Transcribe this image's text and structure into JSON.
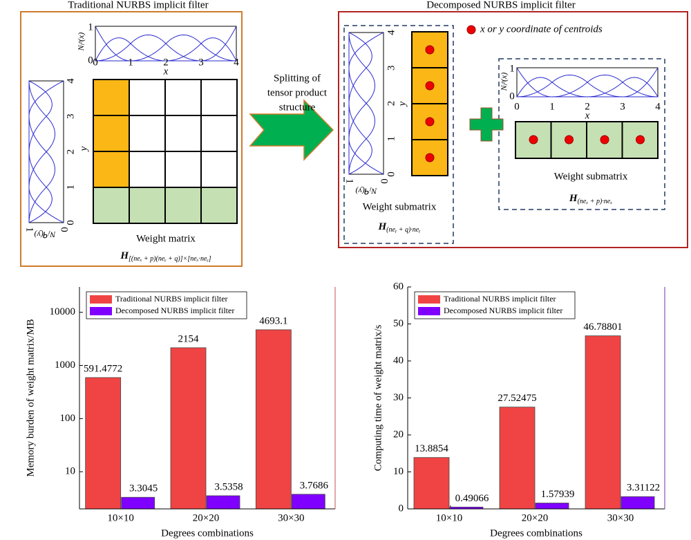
{
  "diagram": {
    "left_title": "Traditional NURBS implicit filter",
    "right_title": "Decomposed NURBS implicit filter",
    "arrow_label": [
      "Splitting of",
      "tensor product",
      "structure"
    ],
    "centroid_legend": "x or y coordinate of centroids",
    "basis_label": "Nᵢᵖ(x)",
    "basis_label_y": "Nⱼᑫ(y)",
    "x_label": "x",
    "y_label": "y",
    "coord_ticks": [
      "0",
      "1",
      "2",
      "3",
      "4"
    ],
    "basis_ticks": [
      "0",
      "1"
    ],
    "weight_matrix": "Weight matrix",
    "weight_submatrix": "Weight submatrix",
    "formula_main": {
      "base": "H",
      "sub": "[(neₓ + p)(neᵧ + q)]×[neₓ·neᵧ]"
    },
    "formula_y": {
      "base": "H",
      "sub": "(neᵧ + q)·neᵧ"
    },
    "formula_x": {
      "base": "H",
      "sub": "(neₓ + p)·neₓ"
    }
  },
  "chart_data": [
    {
      "type": "bar",
      "log_scale": true,
      "y_label": "Memory burden of weight matrix/MB",
      "x_label": "Degrees combinations",
      "categories": [
        "10×10",
        "20×20",
        "30×30"
      ],
      "series": [
        {
          "name": "Traditional NURBS implicit filter",
          "color": "#f04444",
          "values": [
            591.4772,
            2154,
            4693.1
          ]
        },
        {
          "name": "Decomposed NURBS implicit filter",
          "color": "#8000ff",
          "values": [
            3.3045,
            3.5358,
            3.7686
          ]
        }
      ],
      "ylim": [
        2,
        30000
      ],
      "yticks": [
        10,
        100,
        1000,
        10000
      ],
      "legend": "upper left",
      "axis_color": "#c0504d"
    },
    {
      "type": "bar",
      "log_scale": false,
      "y_label": "Computing time of weight matrix/s",
      "x_label": "Degrees combinations",
      "categories": [
        "10×10",
        "20×20",
        "30×30"
      ],
      "series": [
        {
          "name": "Traditional NURBS implicit filter",
          "color": "#f04444",
          "values": [
            13.8854,
            27.52475,
            46.78801
          ]
        },
        {
          "name": "Decomposed NURBS implicit filter",
          "color": "#8000ff",
          "values": [
            0.49066,
            1.57939,
            3.31122
          ]
        }
      ],
      "ylim": [
        0,
        60
      ],
      "yticks": [
        0,
        10,
        20,
        30,
        40,
        50,
        60
      ],
      "legend": "upper left",
      "axis_color": "#7030a0"
    }
  ]
}
